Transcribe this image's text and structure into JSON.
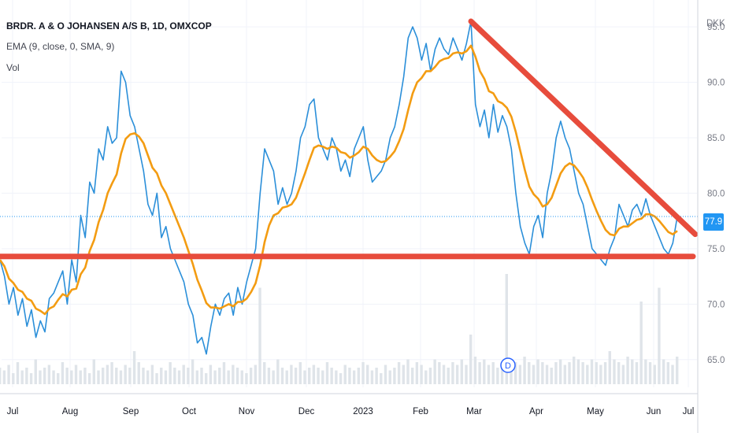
{
  "header": {
    "symbol_title": "BRDR. A & O JOHANSEN A/S B, 1D, OMXCOP",
    "indicator": "EMA (9, close, 0, SMA, 9)",
    "volume_label": "Vol",
    "currency": "DKK",
    "last_price": "77.9",
    "dividend_marker": "D"
  },
  "colors": {
    "price_line": "#2b8fd9",
    "ema_line": "#f39c12",
    "trend_line": "#e74c3c",
    "price_tag": "#2196f3",
    "volume_bar": "#dfe4e9"
  },
  "chart_data": {
    "type": "line",
    "ylim": [
      62.5,
      96
    ],
    "y_ticks": [
      "65.0",
      "70.0",
      "75.0",
      "80.0",
      "85.0",
      "90.0",
      "95.0"
    ],
    "x_ticks": [
      "Jul",
      "Aug",
      "Sep",
      "Oct",
      "Nov",
      "Dec",
      "2023",
      "Feb",
      "Mar",
      "Apr",
      "May",
      "Jun",
      "Jul"
    ],
    "series": [
      {
        "values": [
          74.0,
          72.5,
          70.0,
          71.5,
          69.0,
          70.5,
          68.0,
          69.5,
          67.0,
          68.5,
          67.5,
          70.5,
          71.0,
          72.0,
          73.0,
          70.0,
          74.0,
          72.0,
          78.0,
          76.0,
          81.0,
          80.0,
          84.0,
          83.0,
          86.0,
          84.5,
          85.0,
          91.0,
          90.0,
          87.0,
          86.0,
          84.0,
          82.0,
          79.0,
          78.0,
          80.0,
          76.0,
          77.0,
          75.0,
          74.0,
          73.0,
          72.0,
          70.0,
          69.0,
          66.5,
          67.0,
          65.5,
          68.0,
          70.0,
          69.0,
          70.5,
          71.0,
          69.0,
          71.5,
          70.0,
          72.0,
          73.5,
          75.0,
          80.0,
          84.0,
          83.0,
          82.0,
          79.0,
          80.5,
          79.0,
          80.0,
          82.0,
          85.0,
          86.0,
          88.0,
          88.5,
          85.0,
          84.0,
          83.0,
          85.0,
          84.0,
          82.0,
          83.0,
          81.5,
          84.0,
          85.0,
          86.0,
          83.0,
          81.0,
          81.5,
          82.0,
          83.0,
          85.0,
          86.0,
          88.0,
          90.5,
          94.0,
          95.0,
          94.0,
          92.0,
          93.5,
          91.0,
          93.0,
          94.0,
          93.0,
          92.5,
          94.0,
          93.0,
          92.0,
          93.5,
          95.5,
          88.0,
          86.0,
          87.5,
          85.0,
          88.0,
          85.5,
          87.0,
          86.0,
          84.0,
          80.0,
          77.0,
          75.5,
          74.5,
          77.0,
          78.0,
          76.0,
          80.0,
          82.0,
          85.0,
          86.5,
          85.0,
          84.0,
          82.0,
          80.0,
          79.0,
          77.0,
          75.0,
          74.5,
          74.0,
          73.5,
          75.0,
          76.0,
          79.0,
          78.0,
          77.0,
          78.5,
          79.0,
          78.0,
          79.5,
          78.0,
          77.0,
          76.0,
          75.0,
          74.5,
          75.5,
          77.9
        ],
        "color": "#2b8fd9"
      },
      {
        "values": [
          74.0,
          73.4,
          72.3,
          71.9,
          71.3,
          71.1,
          70.5,
          70.3,
          69.6,
          69.4,
          69.1,
          69.6,
          69.8,
          70.4,
          70.9,
          70.7,
          71.3,
          71.4,
          72.7,
          73.3,
          74.8,
          75.8,
          77.4,
          78.5,
          80.0,
          80.9,
          81.7,
          83.6,
          84.9,
          85.3,
          85.4,
          85.1,
          84.5,
          83.4,
          82.3,
          81.8,
          80.7,
          80.0,
          79.0,
          78.0,
          77.0,
          76.0,
          74.8,
          73.6,
          72.2,
          71.2,
          70.1,
          69.7,
          69.7,
          69.6,
          69.8,
          70.0,
          69.8,
          70.2,
          70.2,
          70.5,
          71.1,
          71.9,
          73.5,
          75.6,
          77.1,
          78.0,
          78.2,
          78.7,
          78.8,
          79.0,
          79.6,
          80.7,
          81.8,
          83.0,
          84.1,
          84.3,
          84.2,
          84.0,
          84.2,
          84.1,
          83.7,
          83.6,
          83.2,
          83.4,
          83.7,
          84.2,
          84.0,
          83.4,
          83.0,
          82.8,
          82.9,
          83.3,
          83.8,
          84.7,
          85.8,
          87.5,
          89.0,
          90.0,
          90.4,
          91.0,
          91.0,
          91.4,
          91.9,
          92.1,
          92.2,
          92.6,
          92.7,
          92.6,
          92.8,
          93.3,
          92.3,
          91.0,
          90.3,
          89.2,
          89.0,
          88.3,
          88.1,
          87.7,
          86.9,
          85.5,
          83.8,
          82.1,
          80.6,
          79.9,
          79.5,
          78.8,
          79.0,
          79.6,
          80.7,
          81.8,
          82.4,
          82.7,
          82.5,
          82.0,
          81.4,
          80.5,
          79.4,
          78.4,
          77.5,
          76.7,
          76.3,
          76.2,
          76.8,
          77.0,
          77.0,
          77.3,
          77.6,
          77.7,
          78.1,
          78.1,
          77.9,
          77.5,
          77.0,
          76.5,
          76.3,
          76.6
        ],
        "color": "#f39c12"
      }
    ],
    "volume": [
      6,
      5,
      7,
      4,
      8,
      5,
      6,
      4,
      9,
      5,
      6,
      7,
      5,
      4,
      8,
      6,
      5,
      7,
      5,
      6,
      4,
      9,
      5,
      6,
      7,
      8,
      6,
      5,
      7,
      6,
      12,
      8,
      6,
      5,
      7,
      4,
      6,
      5,
      8,
      6,
      5,
      7,
      6,
      9,
      5,
      6,
      4,
      7,
      5,
      6,
      8,
      5,
      7,
      6,
      5,
      4,
      6,
      7,
      35,
      8,
      6,
      5,
      9,
      6,
      5,
      7,
      6,
      8,
      5,
      6,
      7,
      6,
      5,
      8,
      6,
      5,
      4,
      7,
      6,
      5,
      6,
      8,
      7,
      5,
      6,
      4,
      7,
      5,
      6,
      8,
      7,
      9,
      6,
      8,
      7,
      5,
      6,
      9,
      8,
      7,
      6,
      8,
      7,
      9,
      7,
      18,
      10,
      8,
      9,
      7,
      8,
      6,
      7,
      40,
      9,
      8,
      7,
      10,
      8,
      7,
      9,
      8,
      7,
      6,
      8,
      9,
      7,
      8,
      10,
      9,
      8,
      7,
      9,
      8,
      7,
      8,
      12,
      9,
      8,
      7,
      10,
      9,
      8,
      30,
      9,
      8,
      7,
      35,
      9,
      8,
      7,
      10
    ],
    "trendlines": [
      {
        "from": [
          0,
          74.3
        ],
        "to": [
          157,
          74.3
        ],
        "color": "#e74c3c"
      },
      {
        "from": [
          105,
          95.5
        ],
        "to": [
          155,
          76.3
        ],
        "color": "#e74c3c"
      }
    ]
  }
}
